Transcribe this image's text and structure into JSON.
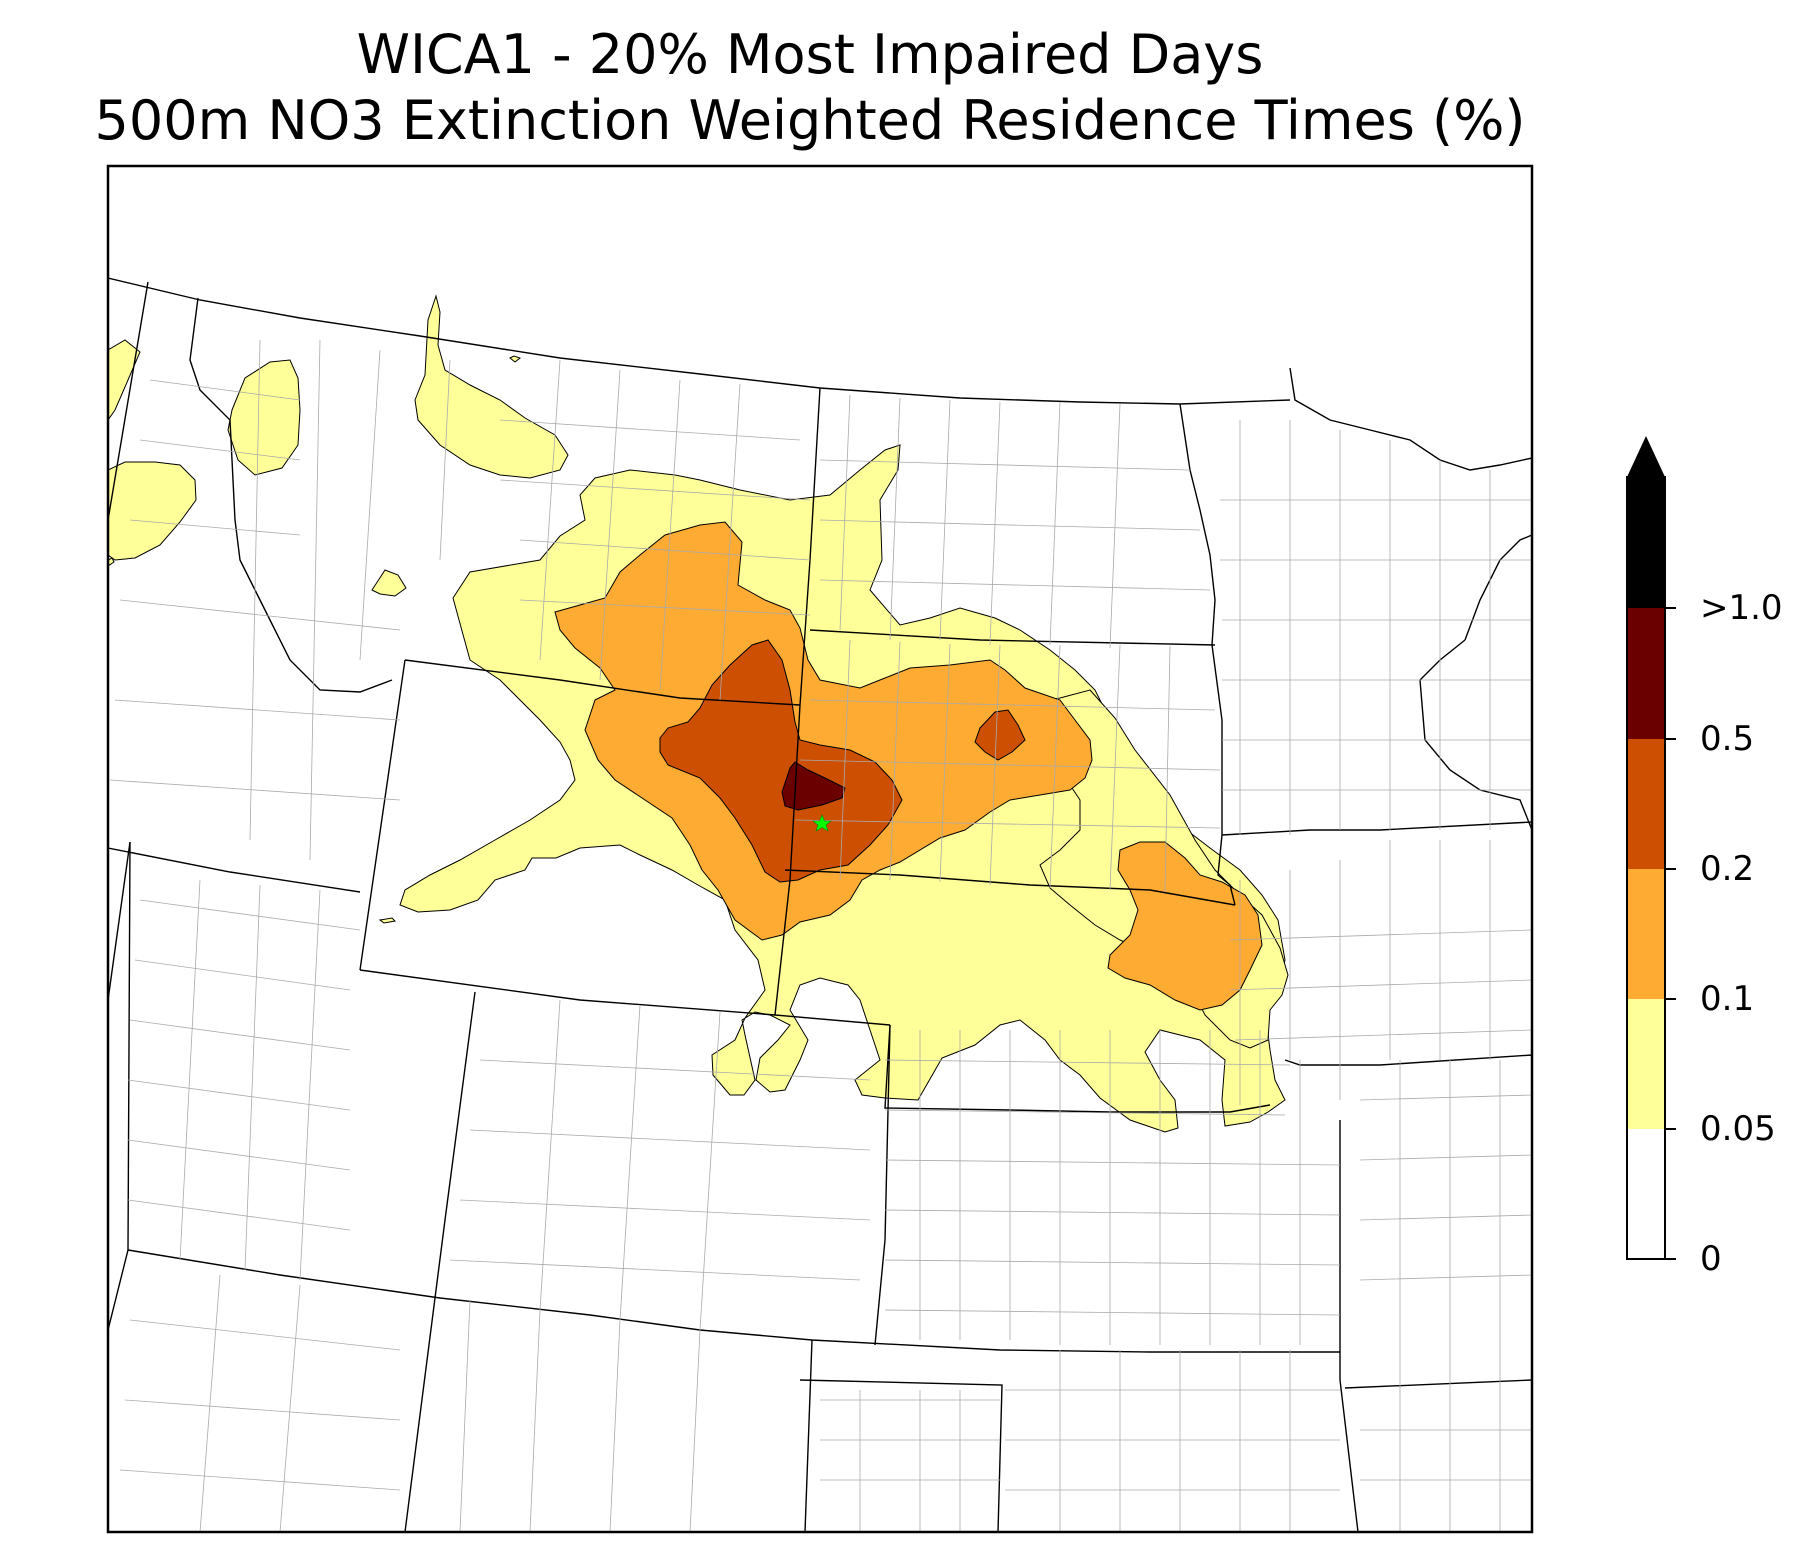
{
  "title": {
    "line1": "WICA1 - 20% Most Impaired Days",
    "line2": "500m NO3 Extinction Weighted Residence Times (%)"
  },
  "colorbar": {
    "levels": [
      "0",
      "0.05",
      "0.1",
      "0.2",
      "0.5",
      ">1.0"
    ],
    "colors": [
      "#ffffff",
      "#ffff99",
      "#fdab33",
      "#cc4f02",
      "#6b0000",
      "#000000"
    ],
    "extend": "max"
  },
  "site_marker": {
    "label": "WICA1",
    "color": "#00ff00",
    "symbol": "star"
  },
  "map": {
    "state_border_color": "#000000",
    "county_border_color": "#aaaaaa"
  }
}
